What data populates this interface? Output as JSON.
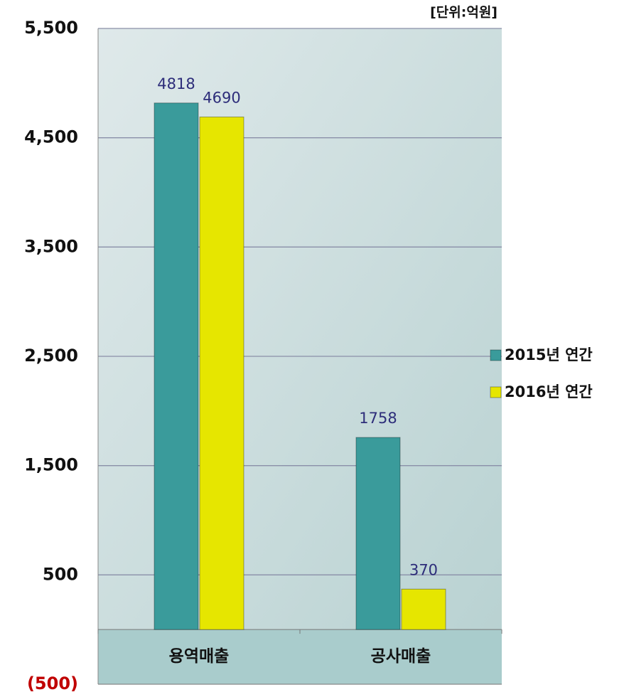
{
  "chart_data": {
    "type": "bar",
    "unit_label": "[단위:억원]",
    "categories": [
      "용역매출",
      "공사매출"
    ],
    "series": [
      {
        "name": "2015년 연간",
        "color": "#3a9b9b",
        "values": [
          4818,
          1758
        ]
      },
      {
        "name": "2016년 연간",
        "color": "#e6e600",
        "values": [
          4690,
          370
        ]
      }
    ],
    "ylim": [
      -500,
      5500
    ],
    "yticks": [
      {
        "value": 5500,
        "label": "5,500"
      },
      {
        "value": 4500,
        "label": "4,500"
      },
      {
        "value": 3500,
        "label": "3,500"
      },
      {
        "value": 2500,
        "label": "2,500"
      },
      {
        "value": 1500,
        "label": "1,500"
      },
      500,
      {
        "value": -500,
        "label": "(500)"
      }
    ],
    "grid": true,
    "legend": "right"
  }
}
